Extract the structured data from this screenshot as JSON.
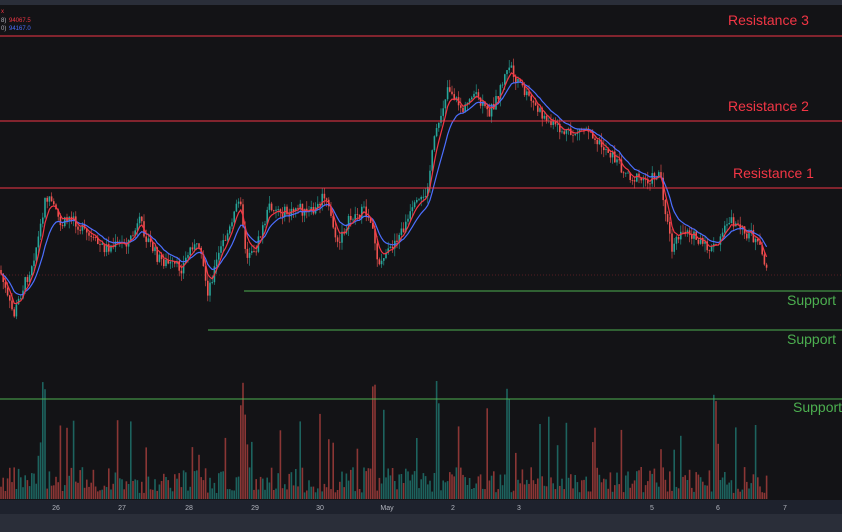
{
  "chart_data": {
    "type": "candlestick",
    "x_ticks": [
      "26",
      "27",
      "28",
      "29",
      "30",
      "May",
      "2",
      "3",
      "5",
      "6",
      "7"
    ],
    "legend": {
      "marker": "x",
      "ema_short": {
        "suffix": "8)",
        "value": "94067.5",
        "color": "#f23645"
      },
      "ema_long": {
        "suffix": "0)",
        "value": "94167.0",
        "color": "#4c6fff"
      }
    },
    "levels": [
      {
        "label": "Resistance 3",
        "kind": "resistance",
        "color": "#f23645",
        "extent": "full"
      },
      {
        "label": "Resistance 2",
        "kind": "resistance",
        "color": "#f23645",
        "extent": "full"
      },
      {
        "label": "Resistance 1",
        "kind": "resistance",
        "color": "#f23645",
        "extent": "full"
      },
      {
        "label": "Support",
        "kind": "support",
        "color": "#4caf50",
        "extent": "from-apr-28"
      },
      {
        "label": "Support",
        "kind": "support",
        "color": "#4caf50",
        "extent": "from-apr-28"
      },
      {
        "label": "Support",
        "kind": "support",
        "color": "#4caf50",
        "extent": "full"
      }
    ],
    "colors": {
      "background": "#131316",
      "up": "#26a69a",
      "down": "#ef5350",
      "ema_short": "#f23645",
      "ema_long": "#4c6fff",
      "resistance": "#f23645",
      "support": "#4caf50",
      "axis_text": "#b2b5be"
    },
    "grid": false,
    "volume_pane": true
  }
}
